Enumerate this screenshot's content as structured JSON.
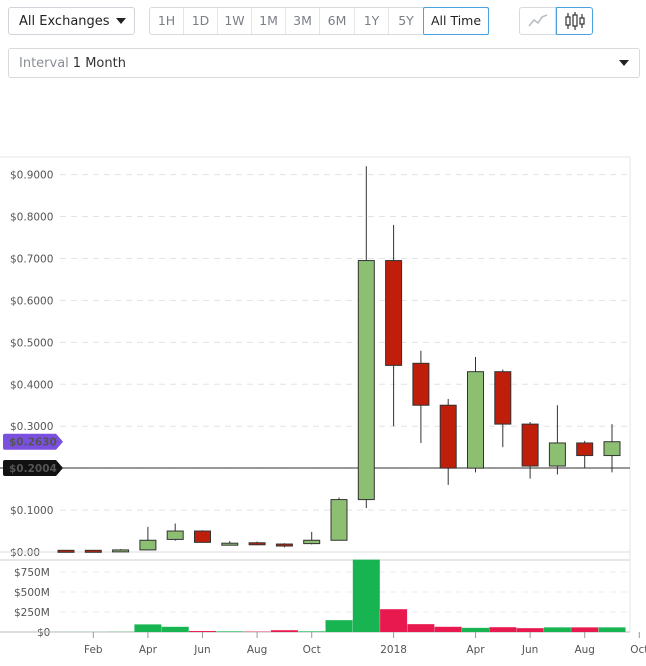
{
  "toolbar": {
    "exchange": "All Exchanges",
    "ranges": [
      "1H",
      "1D",
      "1W",
      "1M",
      "3M",
      "6M",
      "1Y",
      "5Y",
      "All Time"
    ],
    "active_range": "All Time",
    "chart_types": [
      "line-chart-icon",
      "candlestick-icon"
    ],
    "active_chart_type": "candlestick-icon"
  },
  "interval": {
    "label": "Interval",
    "value": "1 Month"
  },
  "colors": {
    "up": "#8dbf73",
    "down": "#bf1f0a",
    "vol_up": "#17b451",
    "vol_down": "#e8194f",
    "last_badge": "#7b4fe0",
    "ref_badge": "#111111"
  },
  "chart_data": [
    {
      "type": "candlestick",
      "y_ticks": [
        "$0.00",
        "$0.1000",
        "$0.2000",
        "$0.3000",
        "$0.4000",
        "$0.5000",
        "$0.6000",
        "$0.7000",
        "$0.8000",
        "$0.9000"
      ],
      "y_tick_values": [
        0,
        0.1,
        0.2,
        0.3,
        0.4,
        0.5,
        0.6,
        0.7,
        0.8,
        0.9
      ],
      "ylim": [
        0,
        0.92
      ],
      "x_tick_labels": [
        "Feb",
        "Apr",
        "Jun",
        "Aug",
        "Oct",
        "2018",
        "Apr",
        "Jun",
        "Aug",
        "Oct"
      ],
      "x_tick_months": [
        1,
        3,
        5,
        7,
        9,
        12,
        15,
        17,
        19,
        21
      ],
      "last_price_label": "$0.2630",
      "last_price": 0.263,
      "reference_label": "$0.2004",
      "reference_price": 0.2004,
      "candles": [
        {
          "month": 0,
          "open": 0.004,
          "high": 0.005,
          "low": 0.002,
          "close": 0.003
        },
        {
          "month": 1,
          "open": 0.004,
          "high": 0.005,
          "low": 0.002,
          "close": 0.003
        },
        {
          "month": 2,
          "open": 0.003,
          "high": 0.007,
          "low": 0.002,
          "close": 0.005
        },
        {
          "month": 3,
          "open": 0.005,
          "high": 0.06,
          "low": 0.004,
          "close": 0.028
        },
        {
          "month": 4,
          "open": 0.03,
          "high": 0.068,
          "low": 0.027,
          "close": 0.05
        },
        {
          "month": 5,
          "open": 0.05,
          "high": 0.052,
          "low": 0.022,
          "close": 0.023
        },
        {
          "month": 6,
          "open": 0.019,
          "high": 0.026,
          "low": 0.016,
          "close": 0.021
        },
        {
          "month": 7,
          "open": 0.022,
          "high": 0.025,
          "low": 0.016,
          "close": 0.018
        },
        {
          "month": 8,
          "open": 0.019,
          "high": 0.021,
          "low": 0.011,
          "close": 0.015
        },
        {
          "month": 9,
          "open": 0.02,
          "high": 0.048,
          "low": 0.018,
          "close": 0.028
        },
        {
          "month": 10,
          "open": 0.028,
          "high": 0.13,
          "low": 0.027,
          "close": 0.125
        },
        {
          "month": 11,
          "open": 0.125,
          "high": 0.92,
          "low": 0.105,
          "close": 0.695
        },
        {
          "month": 12,
          "open": 0.695,
          "high": 0.78,
          "low": 0.3,
          "close": 0.445
        },
        {
          "month": 13,
          "open": 0.45,
          "high": 0.48,
          "low": 0.26,
          "close": 0.35
        },
        {
          "month": 14,
          "open": 0.35,
          "high": 0.365,
          "low": 0.16,
          "close": 0.2
        },
        {
          "month": 15,
          "open": 0.2,
          "high": 0.465,
          "low": 0.19,
          "close": 0.43
        },
        {
          "month": 16,
          "open": 0.43,
          "high": 0.435,
          "low": 0.25,
          "close": 0.305
        },
        {
          "month": 17,
          "open": 0.305,
          "high": 0.31,
          "low": 0.175,
          "close": 0.205
        },
        {
          "month": 18,
          "open": 0.205,
          "high": 0.35,
          "low": 0.185,
          "close": 0.26
        },
        {
          "month": 19,
          "open": 0.26,
          "high": 0.265,
          "low": 0.2,
          "close": 0.23
        },
        {
          "month": 20,
          "open": 0.23,
          "high": 0.305,
          "low": 0.19,
          "close": 0.263
        }
      ]
    },
    {
      "type": "bar",
      "name": "volume",
      "y_ticks": [
        "$0",
        "$250M",
        "$500M",
        "$750M"
      ],
      "y_tick_values": [
        0,
        250,
        500,
        750
      ],
      "ylim": [
        0,
        920
      ],
      "unit": "$M",
      "bars": [
        {
          "month": 0,
          "value": 1,
          "dir": "up"
        },
        {
          "month": 1,
          "value": 1,
          "dir": "up"
        },
        {
          "month": 2,
          "value": 2,
          "dir": "up"
        },
        {
          "month": 3,
          "value": 95,
          "dir": "up"
        },
        {
          "month": 4,
          "value": 65,
          "dir": "up"
        },
        {
          "month": 5,
          "value": 12,
          "dir": "down"
        },
        {
          "month": 6,
          "value": 8,
          "dir": "up"
        },
        {
          "month": 7,
          "value": 5,
          "dir": "down"
        },
        {
          "month": 8,
          "value": 22,
          "dir": "down"
        },
        {
          "month": 9,
          "value": 8,
          "dir": "up"
        },
        {
          "month": 10,
          "value": 148,
          "dir": "up"
        },
        {
          "month": 11,
          "value": 905,
          "dir": "up"
        },
        {
          "month": 12,
          "value": 285,
          "dir": "down"
        },
        {
          "month": 13,
          "value": 98,
          "dir": "down"
        },
        {
          "month": 14,
          "value": 65,
          "dir": "down"
        },
        {
          "month": 15,
          "value": 52,
          "dir": "up"
        },
        {
          "month": 16,
          "value": 60,
          "dir": "down"
        },
        {
          "month": 17,
          "value": 48,
          "dir": "down"
        },
        {
          "month": 18,
          "value": 58,
          "dir": "up"
        },
        {
          "month": 19,
          "value": 58,
          "dir": "down"
        },
        {
          "month": 20,
          "value": 58,
          "dir": "up"
        }
      ]
    }
  ]
}
